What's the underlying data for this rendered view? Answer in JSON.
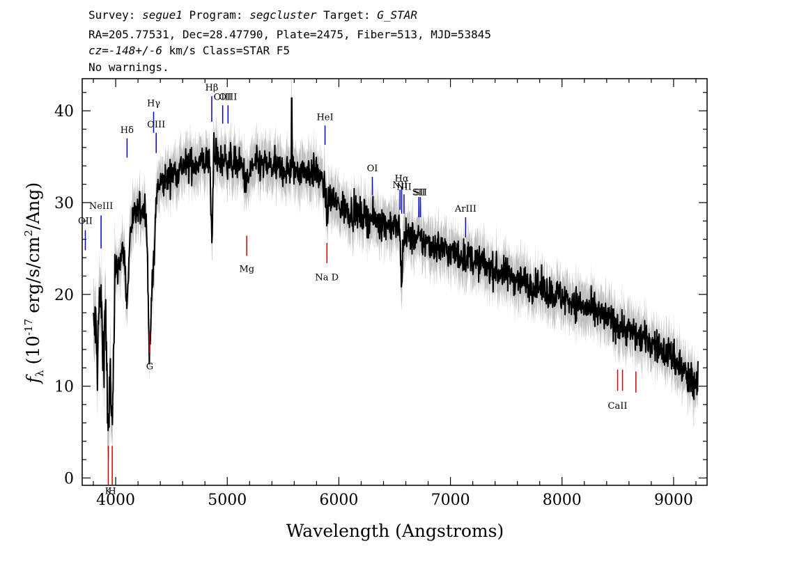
{
  "header": {
    "line1": [
      {
        "text": "Survey: ",
        "italic": false
      },
      {
        "text": "segue1",
        "italic": true
      },
      {
        "text": " Program: ",
        "italic": false
      },
      {
        "text": "segcluster",
        "italic": true
      },
      {
        "text": " Target: ",
        "italic": false
      },
      {
        "text": "G_STAR",
        "italic": true
      }
    ],
    "line2": "RA=205.77531, Dec=28.47790, Plate=2475, Fiber=513, MJD=53845",
    "line3": [
      {
        "text": "cz=-148+/-6",
        "italic": true
      },
      {
        "text": " km/s Class=STAR F5",
        "italic": false
      }
    ],
    "line4": "No warnings."
  },
  "colors": {
    "flux": "#000000",
    "error": "#c0c0c0",
    "emission": "#0000cc",
    "absorption": "#cc0000"
  },
  "chart_data": {
    "type": "line",
    "xlabel": "Wavelength (Angstroms)",
    "ylabel_main": "f",
    "ylabel_sub": "λ",
    "ylabel_paren_open": "(10",
    "ylabel_exp1": "-17",
    "ylabel_mid": "erg/s/cm",
    "ylabel_exp2": "2",
    "ylabel_end": "/Ang)",
    "xlim": [
      3700,
      9300
    ],
    "ylim": [
      -0.8,
      43.5
    ],
    "xticks": [
      4000,
      5000,
      6000,
      7000,
      8000,
      9000
    ],
    "yticks": [
      0,
      10,
      20,
      30,
      40
    ],
    "continuum": [
      [
        3800,
        16
      ],
      [
        3850,
        19
      ],
      [
        3900,
        21
      ],
      [
        3970,
        22
      ],
      [
        4050,
        24
      ],
      [
        4100,
        27
      ],
      [
        4200,
        29
      ],
      [
        4300,
        30
      ],
      [
        4400,
        32
      ],
      [
        4500,
        33
      ],
      [
        4600,
        34
      ],
      [
        4700,
        34.2
      ],
      [
        4800,
        34.5
      ],
      [
        4900,
        34.6
      ],
      [
        5000,
        34.6
      ],
      [
        5100,
        34.1
      ],
      [
        5200,
        34.0
      ],
      [
        5300,
        34.1
      ],
      [
        5400,
        33.9
      ],
      [
        5500,
        33.6
      ],
      [
        5600,
        33.5
      ],
      [
        5700,
        33.5
      ],
      [
        5800,
        33.3
      ],
      [
        5850,
        32.2
      ],
      [
        5900,
        30.8
      ],
      [
        6000,
        29.6
      ],
      [
        6200,
        28.6
      ],
      [
        6400,
        27.8
      ],
      [
        6500,
        27.5
      ],
      [
        6600,
        26.4
      ],
      [
        6800,
        25.6
      ],
      [
        7000,
        24.6
      ],
      [
        7200,
        23.8
      ],
      [
        7400,
        22.6
      ],
      [
        7600,
        21.7
      ],
      [
        7800,
        20.7
      ],
      [
        8000,
        19.7
      ],
      [
        8200,
        18.6
      ],
      [
        8400,
        17.4
      ],
      [
        8600,
        16.0
      ],
      [
        8800,
        14.7
      ],
      [
        9000,
        13.2
      ],
      [
        9100,
        11.4
      ],
      [
        9150,
        10.4
      ],
      [
        9220,
        10.2
      ]
    ],
    "absorption_features": [
      {
        "center": 3934,
        "width": 12,
        "depth": 0.82
      },
      {
        "center": 3969,
        "width": 12,
        "depth": 0.75
      },
      {
        "center": 3889,
        "width": 10,
        "depth": 0.35
      },
      {
        "center": 3835,
        "width": 8,
        "depth": 0.3
      },
      {
        "center": 4102,
        "width": 14,
        "depth": 0.28
      },
      {
        "center": 4305,
        "width": 14,
        "depth": 0.55
      },
      {
        "center": 4340,
        "width": 12,
        "depth": 0.25
      },
      {
        "center": 4861,
        "width": 8,
        "depth": 0.22
      },
      {
        "center": 5175,
        "width": 20,
        "depth": 0.06
      },
      {
        "center": 5893,
        "width": 10,
        "depth": 0.06
      },
      {
        "center": 6563,
        "width": 6,
        "depth": 0.24
      }
    ],
    "spikes": [
      {
        "x": 5578,
        "y": 41.4
      },
      {
        "x": 4880,
        "y": 37.6
      },
      {
        "x": 4900,
        "y": 37.0
      }
    ],
    "emission_lines": [
      {
        "label": "OII",
        "x": 3728,
        "y0": 24.8,
        "y1": 27.0,
        "label_y": 27.7
      },
      {
        "label": "NeIII",
        "x": 3869,
        "y0": 25.0,
        "y1": 28.6,
        "label_y": 29.3
      },
      {
        "label": "Hδ",
        "x": 4102,
        "y0": 34.9,
        "y1": 37.0,
        "label_y": 37.6
      },
      {
        "label": "Hγ",
        "x": 4340,
        "y0": 37.6,
        "y1": 39.9,
        "label_y": 40.5
      },
      {
        "label": "OIII",
        "x": 4363,
        "y0": 35.4,
        "y1": 37.6,
        "label_y": 38.2
      },
      {
        "label": "Hβ",
        "x": 4861,
        "y0": 38.8,
        "y1": 41.6,
        "label_y": 42.2
      },
      {
        "label": "OIII",
        "x": 4959,
        "y0": 38.6,
        "y1": 40.6,
        "label_y": 41.2
      },
      {
        "label": "OIII",
        "x": 5007,
        "y0": 38.6,
        "y1": 40.6,
        "label_y": 41.2
      },
      {
        "label": "HeI",
        "x": 5876,
        "y0": 36.3,
        "y1": 38.4,
        "label_y": 39.0
      },
      {
        "label": "OI",
        "x": 6300,
        "y0": 30.8,
        "y1": 32.8,
        "label_y": 33.4
      },
      {
        "label": "NII",
        "x": 6548,
        "y0": 29.2,
        "y1": 31.4,
        "label_y": 31.6
      },
      {
        "label": "Hα",
        "x": 6563,
        "y0": 28.8,
        "y1": 31.6,
        "label_y": 32.3
      },
      {
        "label": "NII",
        "x": 6584,
        "y0": 28.8,
        "y1": 30.9,
        "label_y": 31.4
      },
      {
        "label": "SII",
        "x": 6717,
        "y0": 28.4,
        "y1": 30.6,
        "label_y": 30.8
      },
      {
        "label": "SII",
        "x": 6731,
        "y0": 28.4,
        "y1": 30.6,
        "label_y": 30.8
      },
      {
        "label": "ArIII",
        "x": 7136,
        "y0": 26.2,
        "y1": 28.4,
        "label_y": 29.0
      }
    ],
    "absorption_lines": [
      {
        "label": "K",
        "x": 3934,
        "y0": -0.8,
        "y1": 3.5,
        "label_y": -1.0
      },
      {
        "label": "H",
        "x": 3969,
        "y0": -0.8,
        "y1": 3.5,
        "label_y": -1.0
      },
      {
        "label": "G",
        "x": 4305,
        "y0": 13.6,
        "y1": 16.0,
        "label_y": 12.6
      },
      {
        "label": "Mg",
        "x": 5175,
        "y0": 24.2,
        "y1": 26.4,
        "label_y": 23.2
      },
      {
        "label": "Na D",
        "x": 5893,
        "y0": 23.4,
        "y1": 25.6,
        "label_y": 22.3
      },
      {
        "label": "CaII",
        "x": 8498,
        "y0": 9.5,
        "y1": 11.8,
        "label_y": 8.3
      },
      {
        "label": "CaII",
        "x": 8542,
        "y0": 9.5,
        "y1": 11.8,
        "label_y": null
      },
      {
        "label": "CaII",
        "x": 8662,
        "y0": 9.3,
        "y1": 11.6,
        "label_y": null
      }
    ]
  }
}
